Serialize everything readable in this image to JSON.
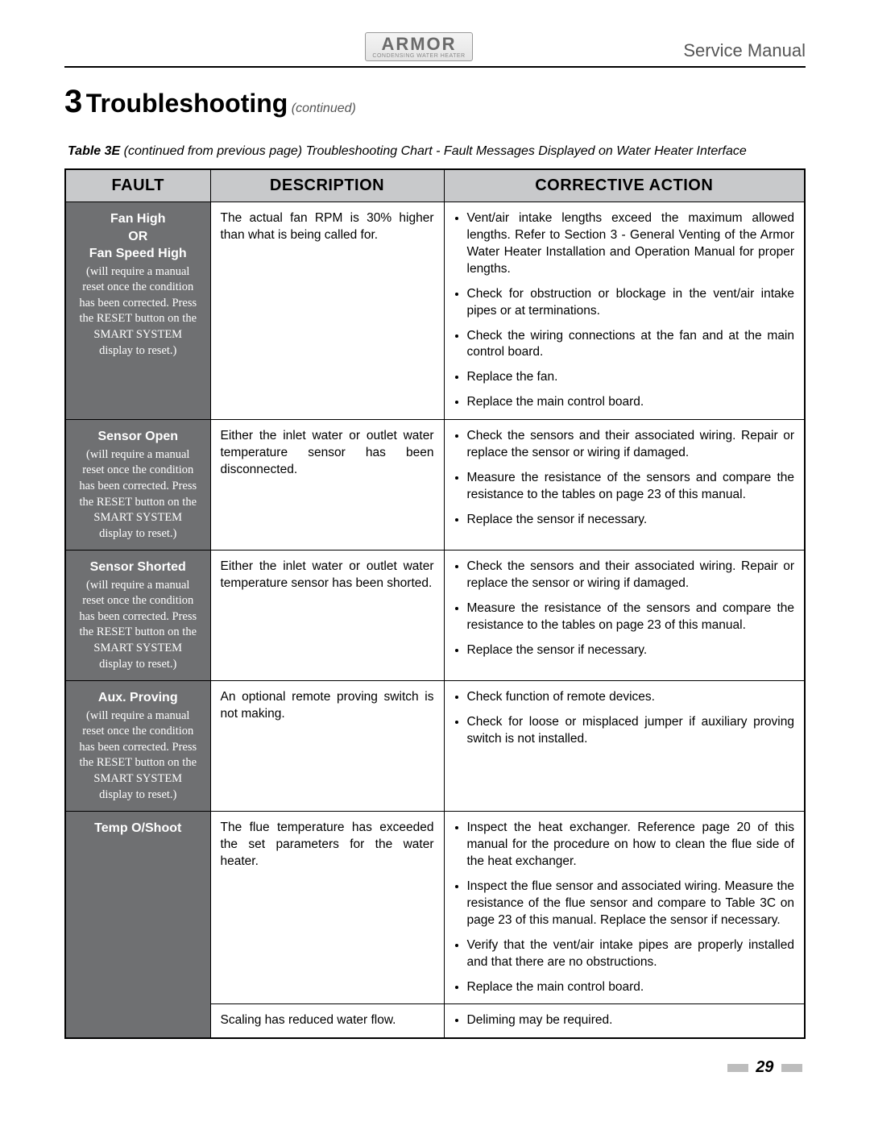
{
  "header": {
    "brand": "ARMOR",
    "brand_sub": "CONDENSING WATER HEATER",
    "doc_type": "Service Manual"
  },
  "section": {
    "number": "3",
    "title": "Troubleshooting",
    "continued": "(continued)"
  },
  "caption": {
    "label": "Table 3E",
    "text": "(continued from previous page) Troubleshooting Chart - Fault Messages Displayed on Water Heater Interface"
  },
  "columns": [
    "FAULT",
    "DESCRIPTION",
    "CORRECTIVE ACTION"
  ],
  "reset_note": "(will require a manual reset once the condition has been corrected.  Press the RESET button on the SMART SYSTEM display to reset.)",
  "rows": [
    {
      "fault_lines": [
        "Fan High",
        "OR",
        "Fan Speed High"
      ],
      "show_note": true,
      "description": "The actual fan RPM is 30% higher than what is being called for.",
      "actions": [
        "Vent/air intake lengths exceed the maximum allowed lengths.  Refer to Section 3 - General Venting of the Armor Water Heater Installation and Operation Manual for proper lengths.",
        "Check for obstruction or blockage in the vent/air intake pipes or at terminations.",
        "Check the wiring connections at the fan and at the main control board.",
        "Replace the fan.",
        "Replace the main control board."
      ]
    },
    {
      "fault_lines": [
        "Sensor Open"
      ],
      "show_note": true,
      "description": "Either the inlet water or outlet water temperature sensor has been disconnected.",
      "actions": [
        "Check the sensors and their associated wiring.  Repair or replace the sensor or wiring if damaged.",
        "Measure the resistance of the sensors and compare the resistance to the tables on page 23 of this manual.",
        "Replace the sensor if necessary."
      ]
    },
    {
      "fault_lines": [
        "Sensor Shorted"
      ],
      "show_note": true,
      "description": "Either the inlet water or outlet water temperature sensor has been shorted.",
      "actions": [
        "Check the sensors and their associated wiring.  Repair or replace the sensor or wiring if damaged.",
        "Measure the resistance of the sensors and compare the resistance to the tables on page 23 of this manual.",
        "Replace the sensor if necessary."
      ]
    },
    {
      "fault_lines": [
        "Aux. Proving"
      ],
      "show_note": true,
      "description": "An optional remote proving switch is not making.",
      "actions": [
        "Check function of remote devices.",
        "Check for loose or misplaced jumper if auxiliary proving switch is not installed."
      ]
    },
    {
      "fault_lines": [
        "Temp O/Shoot"
      ],
      "show_note": false,
      "rowspan": 2,
      "description": "The flue temperature has exceeded the set parameters for the water heater.",
      "actions": [
        "Inspect the heat exchanger.  Reference page 20 of this manual for the procedure on how to clean the flue side of the heat exchanger.",
        "Inspect the flue sensor and associated wiring.  Measure the resistance of the flue sensor and compare to Table 3C on page 23 of this manual.  Replace the sensor if necessary.",
        "Verify that the vent/air intake pipes are properly installed and that there are no obstructions.",
        "Replace the main control board."
      ]
    },
    {
      "continuation": true,
      "description": "Scaling has reduced water flow.",
      "actions": [
        "Deliming may be required."
      ]
    }
  ],
  "page_number": "29",
  "style": {
    "header_bg": "#c8c9cb",
    "fault_bg": "#6f7072",
    "fault_fg": "#ffffff",
    "border": "#000000",
    "text": "#000000",
    "muted": "#555555"
  }
}
